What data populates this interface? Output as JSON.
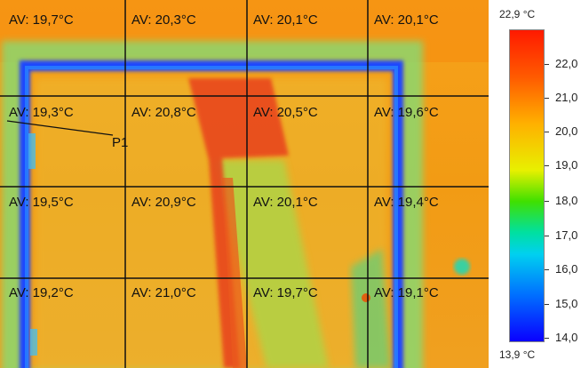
{
  "cells": [
    [
      "AV: 19,7°C",
      "AV: 20,3°C",
      "AV: 20,1°C",
      "AV: 20,1°C"
    ],
    [
      "AV: 19,3°C",
      "AV: 20,8°C",
      "AV: 20,5°C",
      "AV: 19,6°C"
    ],
    [
      "AV: 19,5°C",
      "AV: 20,9°C",
      "AV: 20,1°C",
      "AV: 19,4°C"
    ],
    [
      "AV: 19,2°C",
      "AV: 21,0°C",
      "AV: 19,7°C",
      "AV: 19,1°C"
    ]
  ],
  "point_label": "P1",
  "scale": {
    "max": "22,9 °C",
    "min": "13,9 °C",
    "ticks": [
      "22,0",
      "21,0",
      "20,0",
      "19,0",
      "18,0",
      "17,0",
      "16,0",
      "15,0",
      "14,0"
    ]
  }
}
